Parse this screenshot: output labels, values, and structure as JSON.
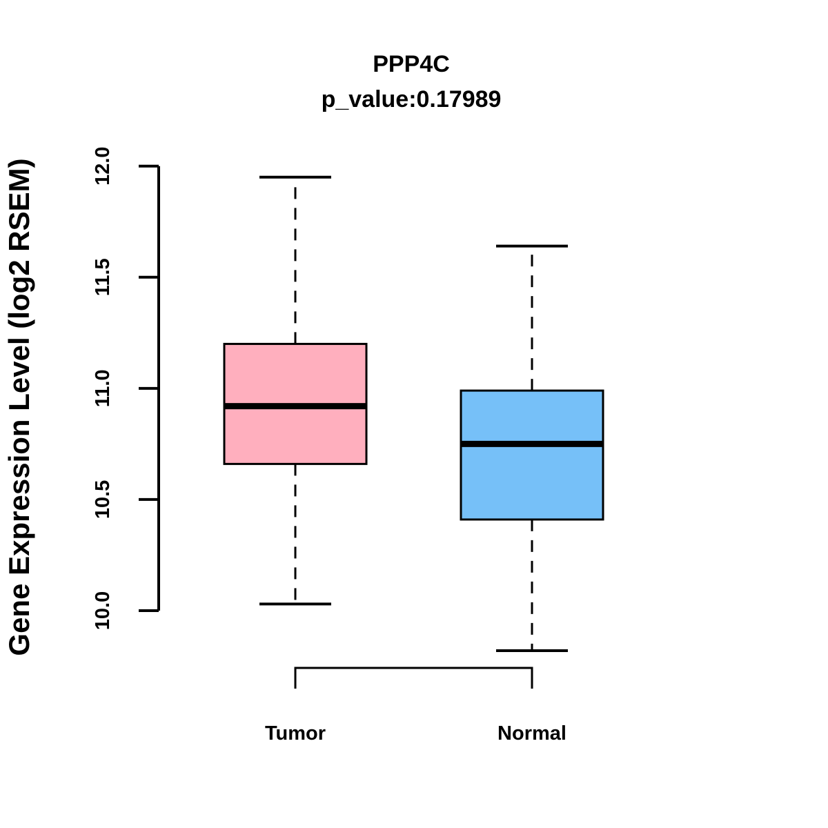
{
  "chart_data": {
    "type": "boxplot",
    "title": "PPP4C",
    "subtitle": "p_value:0.17989",
    "ylabel": "Gene Expression Level (log2 RSEM)",
    "xlabel": "",
    "ylim": [
      10.0,
      12.0
    ],
    "yticks": [
      "10.0",
      "10.5",
      "11.0",
      "11.5",
      "12.0"
    ],
    "grid": false,
    "legend": "none",
    "line_color": "#000000",
    "groups": [
      {
        "label": "Tumor",
        "box_color": "#FFAFBE",
        "whisker_low": 10.03,
        "q1": 10.66,
        "median": 10.92,
        "q3": 11.2,
        "whisker_high": 11.95
      },
      {
        "label": "Normal",
        "box_color": "#76C0F8",
        "whisker_low": 9.82,
        "q1": 10.41,
        "median": 10.75,
        "q3": 10.99,
        "whisker_high": 11.64
      }
    ]
  }
}
